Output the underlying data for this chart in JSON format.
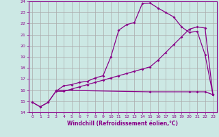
{
  "xlabel": "Windchill (Refroidissement éolien,°C)",
  "bg_color": "#cce8e4",
  "grid_color": "#aaaaaa",
  "line_color": "#880088",
  "xlim": [
    -0.5,
    23.5
  ],
  "ylim": [
    14,
    24
  ],
  "yticks": [
    14,
    15,
    16,
    17,
    18,
    19,
    20,
    21,
    22,
    23,
    24
  ],
  "xticks": [
    0,
    1,
    2,
    3,
    4,
    5,
    6,
    7,
    8,
    9,
    10,
    11,
    12,
    13,
    14,
    15,
    16,
    17,
    18,
    19,
    20,
    21,
    22,
    23
  ],
  "line1_x": [
    0,
    1,
    2,
    3,
    4,
    5,
    6,
    7,
    8,
    9,
    10,
    11,
    12,
    13,
    14,
    15,
    16,
    17,
    18,
    19,
    20,
    21,
    22,
    23
  ],
  "line1_y": [
    14.9,
    14.5,
    14.9,
    15.9,
    16.4,
    16.5,
    16.7,
    16.8,
    17.1,
    17.3,
    19.0,
    21.4,
    21.9,
    22.1,
    23.8,
    23.85,
    23.4,
    23.0,
    22.6,
    21.7,
    21.2,
    21.3,
    19.2,
    15.6
  ],
  "line2_x": [
    0,
    1,
    2,
    3,
    4,
    5,
    6,
    7,
    8,
    9,
    10,
    11,
    12,
    13,
    14,
    15,
    16,
    17,
    18,
    19,
    20,
    21,
    22,
    23
  ],
  "line2_y": [
    14.9,
    14.5,
    14.9,
    15.9,
    15.9,
    16.1,
    16.3,
    16.5,
    16.7,
    16.9,
    17.1,
    17.3,
    17.5,
    17.7,
    17.9,
    18.1,
    18.7,
    19.4,
    20.1,
    20.8,
    21.5,
    21.7,
    21.6,
    15.6
  ],
  "line3_x": [
    3,
    15,
    20,
    21,
    22,
    23
  ],
  "line3_y": [
    16.0,
    15.85,
    15.85,
    15.85,
    15.85,
    15.6
  ]
}
